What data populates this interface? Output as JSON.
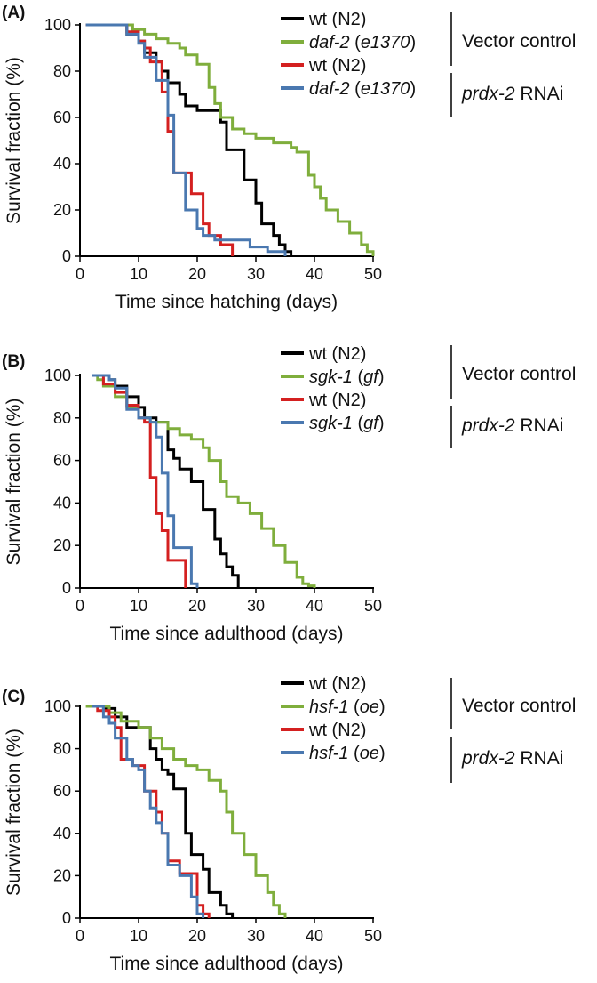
{
  "colors": {
    "wt_vector": "#000000",
    "mutant_vector": "#7fae3c",
    "wt_rnai": "#d42020",
    "mutant_rnai": "#4a78b0"
  },
  "chart_data": [
    {
      "panel": "(A)",
      "type": "line",
      "xlabel": "Time since hatching (days)",
      "ylabel": "Survival fraction (%)",
      "xlim": [
        0,
        50
      ],
      "ylim": [
        0,
        100
      ],
      "xticks": [
        "0",
        "10",
        "20",
        "30",
        "40",
        "50"
      ],
      "yticks": [
        "0",
        "20",
        "40",
        "60",
        "80",
        "100"
      ],
      "groups": [
        {
          "label": "Vector control",
          "parts": [
            {
              "t": "Vector control",
              "i": false
            }
          ]
        },
        {
          "label": "prdx-2 RNAi",
          "parts": [
            {
              "t": "prdx-2",
              "i": true
            },
            {
              "t": " RNAi",
              "i": false
            }
          ]
        }
      ],
      "legend": [
        {
          "label": "wt (N2)",
          "parts": [
            {
              "t": "wt (N2)",
              "i": false
            }
          ],
          "color_key": "wt_vector"
        },
        {
          "label": "daf-2 (e1370)",
          "parts": [
            {
              "t": "daf-2",
              "i": true
            },
            {
              "t": " (",
              "i": false
            },
            {
              "t": "e1370",
              "i": true
            },
            {
              "t": ")",
              "i": false
            }
          ],
          "color_key": "mutant_vector"
        },
        {
          "label": "wt (N2)",
          "parts": [
            {
              "t": "wt (N2)",
              "i": false
            }
          ],
          "color_key": "wt_rnai"
        },
        {
          "label": "daf-2 (e1370)",
          "parts": [
            {
              "t": "daf-2",
              "i": true
            },
            {
              "t": " (",
              "i": false
            },
            {
              "t": "e1370",
              "i": true
            },
            {
              "t": ")",
              "i": false
            }
          ],
          "color_key": "mutant_rnai"
        }
      ],
      "series": [
        {
          "color_key": "wt_vector",
          "x": [
            1,
            6,
            8,
            10,
            11,
            13,
            14,
            15,
            17,
            18,
            20,
            22,
            24,
            25,
            27,
            28,
            30,
            31,
            33,
            34,
            35,
            36
          ],
          "y": [
            100,
            100,
            96,
            93,
            88,
            84,
            80,
            75,
            70,
            65,
            63,
            63,
            58,
            46,
            46,
            33,
            23,
            14,
            9,
            5,
            2,
            0
          ]
        },
        {
          "color_key": "mutant_vector",
          "x": [
            1,
            7,
            9,
            11,
            13,
            15,
            17,
            18,
            20,
            22,
            23,
            24,
            26,
            28,
            30,
            33,
            36,
            37,
            39,
            40,
            41,
            42,
            44,
            46,
            48,
            49,
            50
          ],
          "y": [
            100,
            100,
            98,
            96,
            94,
            92,
            90,
            87,
            83,
            73,
            66,
            60,
            55,
            53,
            51,
            49,
            47,
            45,
            35,
            30,
            25,
            20,
            15,
            10,
            5,
            2,
            0
          ]
        },
        {
          "color_key": "wt_rnai",
          "x": [
            1,
            6,
            8,
            10,
            11,
            12,
            14,
            15,
            16,
            17,
            19,
            21,
            22,
            24,
            26
          ],
          "y": [
            100,
            100,
            97,
            93,
            90,
            84,
            71,
            54,
            36,
            36,
            27,
            14,
            9,
            5,
            0
          ]
        },
        {
          "color_key": "mutant_rnai",
          "x": [
            1,
            6,
            8,
            10,
            11,
            13,
            15,
            16,
            18,
            20,
            21,
            23,
            27,
            29,
            32,
            35
          ],
          "y": [
            100,
            100,
            96,
            92,
            86,
            76,
            61,
            36,
            20,
            12,
            9,
            7,
            7,
            4,
            2,
            0
          ]
        }
      ]
    },
    {
      "panel": "(B)",
      "type": "line",
      "xlabel": "Time since adulthood (days)",
      "ylabel": "Survival fraction (%)",
      "xlim": [
        0,
        50
      ],
      "ylim": [
        0,
        100
      ],
      "xticks": [
        "0",
        "10",
        "20",
        "30",
        "40",
        "50"
      ],
      "yticks": [
        "0",
        "20",
        "40",
        "60",
        "80",
        "100"
      ],
      "groups": [
        {
          "label": "Vector control",
          "parts": [
            {
              "t": "Vector control",
              "i": false
            }
          ]
        },
        {
          "label": "prdx-2 RNAi",
          "parts": [
            {
              "t": "prdx-2",
              "i": true
            },
            {
              "t": " RNAi",
              "i": false
            }
          ]
        }
      ],
      "legend": [
        {
          "label": "wt (N2)",
          "parts": [
            {
              "t": "wt (N2)",
              "i": false
            }
          ],
          "color_key": "wt_vector"
        },
        {
          "label": "sgk-1 (gf)",
          "parts": [
            {
              "t": "sgk-1",
              "i": true
            },
            {
              "t": " (",
              "i": false
            },
            {
              "t": "gf",
              "i": true
            },
            {
              "t": ")",
              "i": false
            }
          ],
          "color_key": "mutant_vector"
        },
        {
          "label": "wt (N2)",
          "parts": [
            {
              "t": "wt (N2)",
              "i": false
            }
          ],
          "color_key": "wt_rnai"
        },
        {
          "label": "sgk-1 (gf)",
          "parts": [
            {
              "t": "sgk-1",
              "i": true
            },
            {
              "t": " (",
              "i": false
            },
            {
              "t": "gf",
              "i": true
            },
            {
              "t": ")",
              "i": false
            }
          ],
          "color_key": "mutant_rnai"
        }
      ],
      "series": [
        {
          "color_key": "wt_vector",
          "x": [
            2,
            4,
            5,
            6,
            8,
            10,
            11,
            13,
            15,
            16,
            17,
            19,
            21,
            23,
            24,
            25,
            26,
            27
          ],
          "y": [
            100,
            100,
            98,
            95,
            90,
            85,
            80,
            78,
            65,
            61,
            56,
            50,
            37,
            23,
            16,
            10,
            6,
            0
          ]
        },
        {
          "color_key": "mutant_vector",
          "x": [
            2,
            3,
            4,
            6,
            8,
            10,
            12,
            15,
            17,
            19,
            21,
            22,
            24,
            25,
            27,
            29,
            31,
            33,
            35,
            37,
            38,
            39,
            40
          ],
          "y": [
            100,
            98,
            95,
            90,
            85,
            80,
            78,
            75,
            72,
            70,
            66,
            60,
            50,
            43,
            40,
            35,
            28,
            20,
            12,
            5,
            2,
            1,
            0
          ]
        },
        {
          "color_key": "wt_rnai",
          "x": [
            2,
            3,
            4,
            6,
            8,
            10,
            11,
            12,
            13,
            14,
            15,
            17,
            18
          ],
          "y": [
            100,
            100,
            96,
            92,
            86,
            80,
            78,
            52,
            35,
            27,
            13,
            13,
            0
          ]
        },
        {
          "color_key": "mutant_rnai",
          "x": [
            2,
            4,
            5,
            6,
            8,
            10,
            12,
            13,
            14,
            15,
            16,
            18,
            19,
            20
          ],
          "y": [
            100,
            100,
            98,
            94,
            84,
            80,
            78,
            71,
            54,
            34,
            19,
            19,
            2,
            0
          ]
        }
      ]
    },
    {
      "panel": "(C)",
      "type": "line",
      "xlabel": "Time since adulthood (days)",
      "ylabel": "Survival fraction (%)",
      "xlim": [
        0,
        50
      ],
      "ylim": [
        0,
        100
      ],
      "xticks": [
        "0",
        "10",
        "20",
        "30",
        "40",
        "50"
      ],
      "yticks": [
        "0",
        "20",
        "40",
        "60",
        "80",
        "100"
      ],
      "groups": [
        {
          "label": "Vector control",
          "parts": [
            {
              "t": "Vector control",
              "i": false
            }
          ]
        },
        {
          "label": "prdx-2 RNAi",
          "parts": [
            {
              "t": "prdx-2",
              "i": true
            },
            {
              "t": " RNAi",
              "i": false
            }
          ]
        }
      ],
      "legend": [
        {
          "label": "wt (N2)",
          "parts": [
            {
              "t": "wt (N2)",
              "i": false
            }
          ],
          "color_key": "wt_vector"
        },
        {
          "label": "hsf-1 (oe)",
          "parts": [
            {
              "t": "hsf-1",
              "i": true
            },
            {
              "t": " (",
              "i": false
            },
            {
              "t": "oe",
              "i": true
            },
            {
              "t": ")",
              "i": false
            }
          ],
          "color_key": "mutant_vector"
        },
        {
          "label": "wt (N2)",
          "parts": [
            {
              "t": "wt (N2)",
              "i": false
            }
          ],
          "color_key": "wt_rnai"
        },
        {
          "label": "hsf-1 (oe)",
          "parts": [
            {
              "t": "hsf-1",
              "i": true
            },
            {
              "t": " (",
              "i": false
            },
            {
              "t": "oe",
              "i": true
            },
            {
              "t": ")",
              "i": false
            }
          ],
          "color_key": "mutant_rnai"
        }
      ],
      "series": [
        {
          "color_key": "wt_vector",
          "x": [
            2,
            4,
            6,
            8,
            10,
            12,
            13,
            14,
            15,
            16,
            17,
            18,
            19,
            21,
            22,
            24,
            25,
            26
          ],
          "y": [
            100,
            99,
            95,
            90,
            90,
            80,
            75,
            70,
            68,
            61,
            61,
            40,
            30,
            23,
            12,
            6,
            2,
            0
          ]
        },
        {
          "color_key": "mutant_vector",
          "x": [
            1,
            3,
            5,
            7,
            10,
            12,
            14,
            16,
            18,
            20,
            22,
            24,
            25,
            26,
            28,
            30,
            32,
            33,
            34,
            35
          ],
          "y": [
            100,
            100,
            97,
            93,
            90,
            85,
            80,
            75,
            72,
            70,
            65,
            60,
            50,
            40,
            30,
            20,
            12,
            6,
            2,
            0
          ]
        },
        {
          "color_key": "wt_rnai",
          "x": [
            2,
            3,
            5,
            6,
            7,
            9,
            10,
            11,
            13,
            14,
            15,
            17,
            19,
            20,
            21,
            22
          ],
          "y": [
            100,
            98,
            95,
            90,
            75,
            72,
            72,
            60,
            50,
            40,
            27,
            21,
            21,
            6,
            2,
            0
          ]
        },
        {
          "color_key": "mutant_rnai",
          "x": [
            2,
            4,
            5,
            6,
            8,
            9,
            10,
            11,
            12,
            13,
            14,
            15,
            17,
            19,
            20,
            21
          ],
          "y": [
            100,
            95,
            92,
            85,
            75,
            72,
            70,
            60,
            52,
            45,
            40,
            25,
            20,
            10,
            2,
            0
          ]
        }
      ]
    }
  ]
}
